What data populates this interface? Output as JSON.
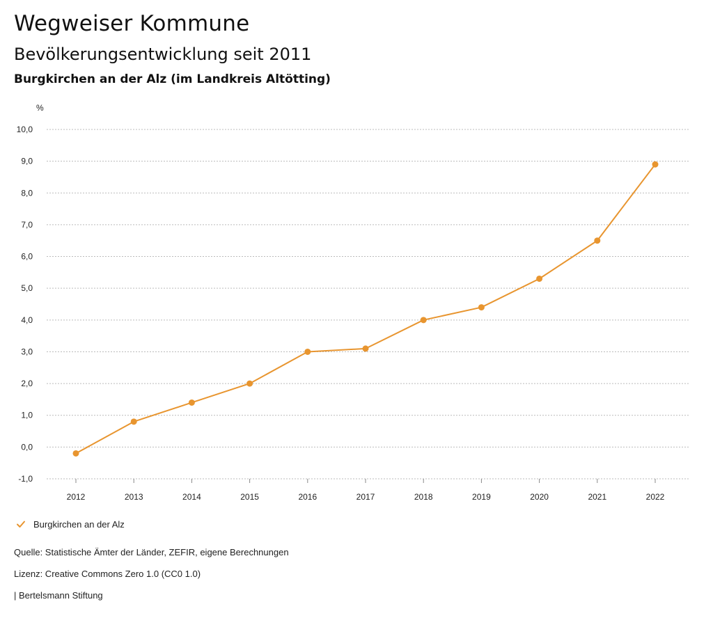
{
  "header": {
    "title": "Wegweiser Kommune",
    "subtitle": "Bevölkerungsentwicklung seit 2011",
    "region": "Burgkirchen an der Alz (im Landkreis Altötting)"
  },
  "chart_data": {
    "type": "line",
    "title": "Bevölkerungsentwicklung seit 2011",
    "unit_label": "%",
    "xlabel": "",
    "ylabel": "%",
    "ylim": [
      -1.0,
      10.0
    ],
    "y_ticks": [
      10.0,
      9.0,
      8.0,
      7.0,
      6.0,
      5.0,
      4.0,
      3.0,
      2.0,
      1.0,
      0.0,
      -1.0
    ],
    "y_tick_labels": [
      "10,0",
      "9,0",
      "8,0",
      "7,0",
      "6,0",
      "5,0",
      "4,0",
      "3,0",
      "2,0",
      "1,0",
      "0,0",
      "-1,0"
    ],
    "categories": [
      "2012",
      "2013",
      "2014",
      "2015",
      "2016",
      "2017",
      "2018",
      "2019",
      "2020",
      "2021",
      "2022"
    ],
    "grid": true,
    "legend_position": "bottom-left",
    "series": [
      {
        "name": "Burgkirchen an der Alz",
        "color": "#E8952F",
        "values": [
          -0.2,
          0.8,
          1.4,
          2.0,
          3.0,
          3.1,
          4.0,
          4.4,
          5.3,
          6.5,
          8.9
        ]
      }
    ]
  },
  "legend": {
    "label": "Burgkirchen an der Alz",
    "icon": "check-icon"
  },
  "footer": {
    "source": "Quelle: Statistische Ämter der Länder, ZEFIR, eigene Berechnungen",
    "license": "Lizenz: Creative Commons Zero 1.0 (CC0 1.0)",
    "publisher": "| Bertelsmann Stiftung"
  },
  "colors": {
    "accent": "#E8952F",
    "grid": "#BBBBBB",
    "text": "#222222"
  }
}
